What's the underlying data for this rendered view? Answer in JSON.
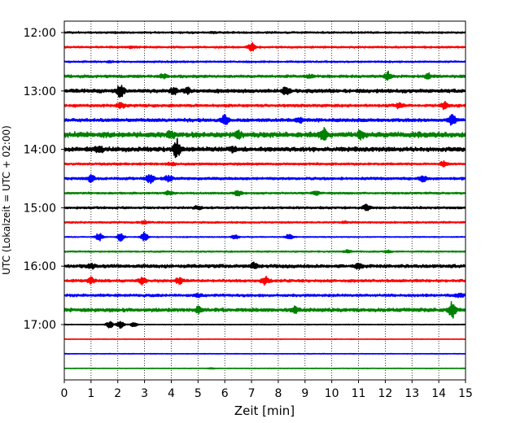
{
  "chart_data": {
    "type": "line",
    "chart_kind": "seismic helicorder (stacked waveform traces)",
    "xlabel": "Zeit  [min]",
    "ylabel": "UTC (Lokalzeit = UTC + 02:00)",
    "xlim": [
      0,
      15
    ],
    "x_ticks": [
      "0",
      "1",
      "2",
      "3",
      "4",
      "5",
      "6",
      "7",
      "8",
      "9",
      "10",
      "11",
      "12",
      "13",
      "14",
      "15"
    ],
    "y_tick_labels": [
      "12:00",
      "13:00",
      "14:00",
      "15:00",
      "16:00",
      "17:00"
    ],
    "grid": {
      "x": true,
      "style": "dotted"
    },
    "trace_colors": [
      "#000000",
      "#ff0000",
      "#0000ff",
      "#008000"
    ],
    "trace_count": 24,
    "trace_interval_minutes": 15,
    "series": [
      {
        "start": "12:00",
        "color": "#000000",
        "base_amp": 0.1,
        "events": [
          {
            "t": 5.5,
            "amp": 0.08
          },
          {
            "t": 13.2,
            "amp": 0.06
          }
        ]
      },
      {
        "start": "12:15",
        "color": "#ff0000",
        "base_amp": 0.1,
        "events": [
          {
            "t": 7.0,
            "amp": 0.55
          },
          {
            "t": 2.5,
            "amp": 0.12
          }
        ]
      },
      {
        "start": "12:30",
        "color": "#0000ff",
        "base_amp": 0.09,
        "events": [
          {
            "t": 1.7,
            "amp": 0.1
          }
        ]
      },
      {
        "start": "12:45",
        "color": "#008000",
        "base_amp": 0.15,
        "events": [
          {
            "t": 12.1,
            "amp": 0.55
          },
          {
            "t": 13.6,
            "amp": 0.4
          },
          {
            "t": 3.7,
            "amp": 0.25
          },
          {
            "t": 9.2,
            "amp": 0.2
          }
        ]
      },
      {
        "start": "13:00",
        "color": "#000000",
        "base_amp": 0.2,
        "events": [
          {
            "t": 2.1,
            "amp": 0.95
          },
          {
            "t": 4.1,
            "amp": 0.45
          },
          {
            "t": 8.3,
            "amp": 0.6
          },
          {
            "t": 4.6,
            "amp": 0.4
          }
        ]
      },
      {
        "start": "13:15",
        "color": "#ff0000",
        "base_amp": 0.15,
        "events": [
          {
            "t": 2.1,
            "amp": 0.45
          },
          {
            "t": 12.5,
            "amp": 0.3
          },
          {
            "t": 14.2,
            "amp": 0.45
          }
        ]
      },
      {
        "start": "13:30",
        "color": "#0000ff",
        "base_amp": 0.18,
        "events": [
          {
            "t": 6.0,
            "amp": 0.75
          },
          {
            "t": 14.5,
            "amp": 0.7
          },
          {
            "t": 8.8,
            "amp": 0.3
          }
        ]
      },
      {
        "start": "13:45",
        "color": "#008000",
        "base_amp": 0.3,
        "events": [
          {
            "t": 9.7,
            "amp": 0.75
          },
          {
            "t": 11.1,
            "amp": 0.55
          },
          {
            "t": 4.0,
            "amp": 0.4
          },
          {
            "t": 6.5,
            "amp": 0.35
          }
        ]
      },
      {
        "start": "14:00",
        "color": "#000000",
        "base_amp": 0.25,
        "events": [
          {
            "t": 4.2,
            "amp": 1.4
          },
          {
            "t": 1.3,
            "amp": 0.4
          },
          {
            "t": 6.3,
            "amp": 0.35
          }
        ]
      },
      {
        "start": "14:15",
        "color": "#ff0000",
        "base_amp": 0.12,
        "events": [
          {
            "t": 14.2,
            "amp": 0.4
          },
          {
            "t": 4.0,
            "amp": 0.25
          }
        ]
      },
      {
        "start": "14:30",
        "color": "#0000ff",
        "base_amp": 0.14,
        "events": [
          {
            "t": 3.2,
            "amp": 0.7
          },
          {
            "t": 1.0,
            "amp": 0.45
          },
          {
            "t": 3.9,
            "amp": 0.45
          },
          {
            "t": 13.4,
            "amp": 0.4
          }
        ]
      },
      {
        "start": "14:45",
        "color": "#008000",
        "base_amp": 0.1,
        "events": [
          {
            "t": 6.5,
            "amp": 0.4
          },
          {
            "t": 9.4,
            "amp": 0.3
          },
          {
            "t": 3.9,
            "amp": 0.25
          }
        ]
      },
      {
        "start": "15:00",
        "color": "#000000",
        "base_amp": 0.12,
        "events": [
          {
            "t": 11.3,
            "amp": 0.45
          },
          {
            "t": 5.0,
            "amp": 0.25
          }
        ]
      },
      {
        "start": "15:15",
        "color": "#ff0000",
        "base_amp": 0.09,
        "events": [
          {
            "t": 3.0,
            "amp": 0.2
          },
          {
            "t": 10.5,
            "amp": 0.15
          }
        ]
      },
      {
        "start": "15:30",
        "color": "#0000ff",
        "base_amp": 0.05,
        "events": [
          {
            "t": 1.3,
            "amp": 0.55
          },
          {
            "t": 2.1,
            "amp": 0.55
          },
          {
            "t": 3.0,
            "amp": 0.65
          },
          {
            "t": 8.4,
            "amp": 0.45
          },
          {
            "t": 6.4,
            "amp": 0.3
          }
        ]
      },
      {
        "start": "15:45",
        "color": "#008000",
        "base_amp": 0.07,
        "events": [
          {
            "t": 10.6,
            "amp": 0.2
          },
          {
            "t": 12.1,
            "amp": 0.15
          }
        ]
      },
      {
        "start": "16:00",
        "color": "#000000",
        "base_amp": 0.18,
        "events": [
          {
            "t": 7.1,
            "amp": 0.4
          },
          {
            "t": 11.0,
            "amp": 0.4
          },
          {
            "t": 1.0,
            "amp": 0.3
          }
        ]
      },
      {
        "start": "16:15",
        "color": "#ff0000",
        "base_amp": 0.15,
        "events": [
          {
            "t": 2.9,
            "amp": 0.45
          },
          {
            "t": 7.5,
            "amp": 0.55
          },
          {
            "t": 4.3,
            "amp": 0.4
          },
          {
            "t": 1.0,
            "amp": 0.4
          }
        ]
      },
      {
        "start": "16:30",
        "color": "#0000ff",
        "base_amp": 0.14,
        "events": [
          {
            "t": 14.8,
            "amp": 0.3
          },
          {
            "t": 5.0,
            "amp": 0.22
          }
        ]
      },
      {
        "start": "16:45",
        "color": "#008000",
        "base_amp": 0.2,
        "events": [
          {
            "t": 14.5,
            "amp": 1.2
          },
          {
            "t": 8.6,
            "amp": 0.4
          },
          {
            "t": 5.0,
            "amp": 0.35
          }
        ]
      },
      {
        "start": "17:00",
        "color": "#000000",
        "base_amp": 0.04,
        "events": [
          {
            "t": 2.1,
            "amp": 0.5
          },
          {
            "t": 1.7,
            "amp": 0.5
          },
          {
            "t": 2.6,
            "amp": 0.3
          }
        ]
      },
      {
        "start": "17:15",
        "color": "#ff0000",
        "base_amp": 0.03,
        "events": []
      },
      {
        "start": "17:30",
        "color": "#0000ff",
        "base_amp": 0.03,
        "events": []
      },
      {
        "start": "17:45",
        "color": "#008000",
        "base_amp": 0.03,
        "events": [
          {
            "t": 5.5,
            "amp": 0.08
          }
        ]
      }
    ]
  }
}
